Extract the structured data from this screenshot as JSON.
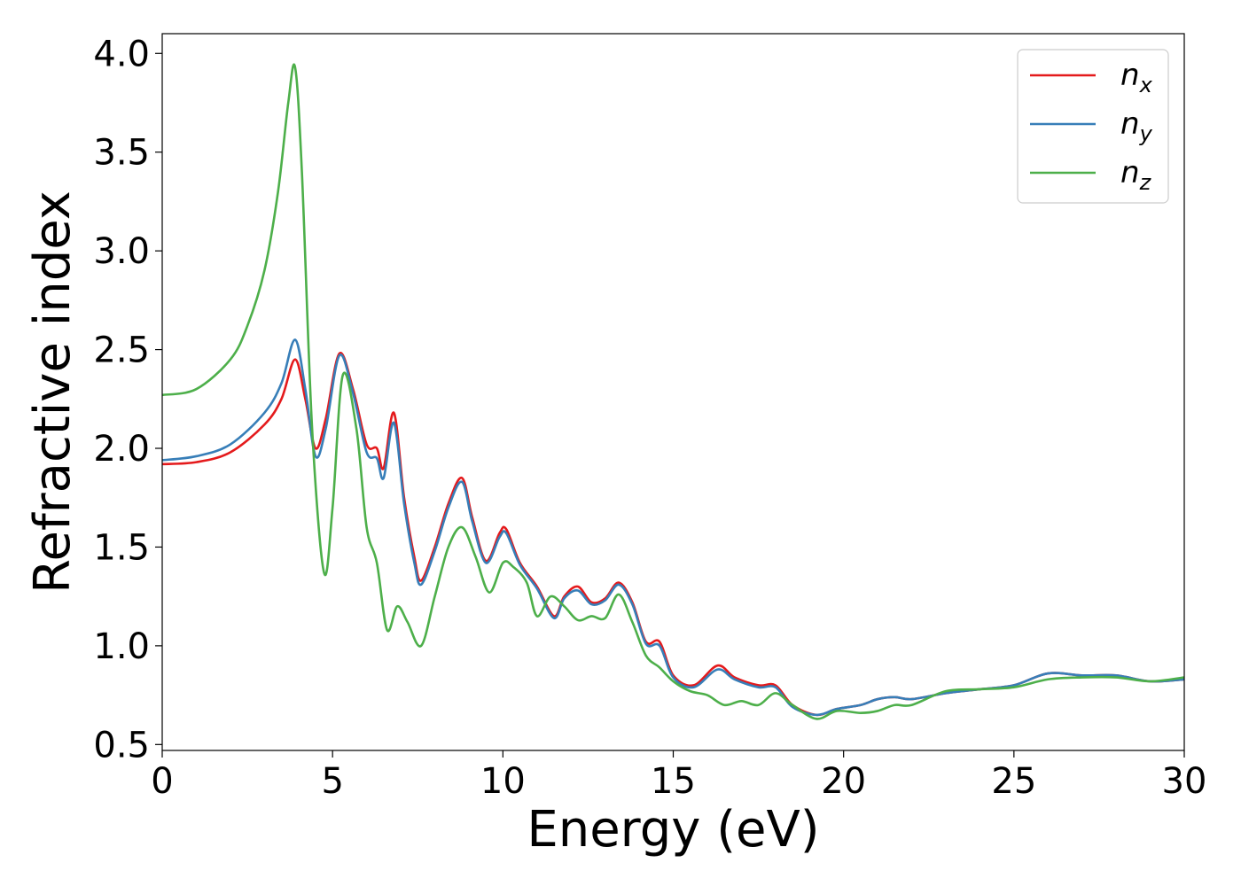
{
  "chart_data": {
    "type": "line",
    "xlabel": "Energy (eV)",
    "ylabel": "Refractive index",
    "xlim": [
      0,
      30
    ],
    "ylim": [
      0.47,
      4.1
    ],
    "xticks": [
      "0",
      "5",
      "10",
      "15",
      "20",
      "25",
      "30"
    ],
    "yticks": [
      "0.5",
      "1.0",
      "1.5",
      "2.0",
      "2.5",
      "3.0",
      "3.5",
      "4.0"
    ],
    "grid": false,
    "legend_position": "top-right",
    "series": [
      {
        "name": "n_x",
        "label_base": "n",
        "label_sub": "x",
        "color": "#e41a1c",
        "x": [
          0,
          1,
          2,
          3,
          3.5,
          3.9,
          4.2,
          4.5,
          4.8,
          5.2,
          5.6,
          6.0,
          6.3,
          6.5,
          6.8,
          7.1,
          7.4,
          7.6,
          8.0,
          8.4,
          8.8,
          9.1,
          9.5,
          9.9,
          10.1,
          10.5,
          11.0,
          11.5,
          11.8,
          12.2,
          12.6,
          13.0,
          13.4,
          13.8,
          14.2,
          14.6,
          15.0,
          15.6,
          16.3,
          16.8,
          17.5,
          18.0,
          18.5,
          19.2,
          19.8,
          20.5,
          21.0,
          21.5,
          22.0,
          23.0,
          24.0,
          25.0,
          26.0,
          27.0,
          28.0,
          29.0,
          30.0
        ],
        "values": [
          1.92,
          1.93,
          1.98,
          2.12,
          2.25,
          2.45,
          2.25,
          2.0,
          2.15,
          2.48,
          2.3,
          2.02,
          2.0,
          1.9,
          2.18,
          1.75,
          1.45,
          1.33,
          1.5,
          1.72,
          1.85,
          1.65,
          1.43,
          1.57,
          1.59,
          1.42,
          1.3,
          1.15,
          1.25,
          1.3,
          1.22,
          1.24,
          1.32,
          1.22,
          1.02,
          1.02,
          0.85,
          0.8,
          0.9,
          0.84,
          0.8,
          0.8,
          0.7,
          0.65,
          0.68,
          0.7,
          0.73,
          0.74,
          0.73,
          0.76,
          0.78,
          0.8,
          0.86,
          0.85,
          0.85,
          0.82,
          0.83
        ]
      },
      {
        "name": "n_y",
        "label_base": "n",
        "label_sub": "y",
        "color": "#377eb8",
        "x": [
          0,
          1,
          2,
          3,
          3.5,
          3.9,
          4.2,
          4.5,
          4.8,
          5.2,
          5.6,
          6.0,
          6.3,
          6.5,
          6.8,
          7.1,
          7.4,
          7.6,
          8.0,
          8.4,
          8.8,
          9.1,
          9.5,
          9.9,
          10.1,
          10.5,
          11.0,
          11.5,
          11.8,
          12.2,
          12.6,
          13.0,
          13.4,
          13.8,
          14.2,
          14.6,
          15.0,
          15.6,
          16.3,
          16.8,
          17.5,
          18.0,
          18.5,
          19.2,
          19.8,
          20.5,
          21.0,
          21.5,
          22.0,
          23.0,
          24.0,
          25.0,
          26.0,
          27.0,
          28.0,
          29.0,
          30.0
        ],
        "values": [
          1.94,
          1.96,
          2.02,
          2.18,
          2.33,
          2.55,
          2.3,
          1.96,
          2.1,
          2.47,
          2.28,
          1.98,
          1.95,
          1.85,
          2.13,
          1.72,
          1.42,
          1.31,
          1.48,
          1.7,
          1.83,
          1.63,
          1.42,
          1.55,
          1.57,
          1.41,
          1.29,
          1.14,
          1.24,
          1.28,
          1.21,
          1.23,
          1.31,
          1.21,
          1.01,
          1.0,
          0.84,
          0.79,
          0.88,
          0.83,
          0.79,
          0.79,
          0.69,
          0.65,
          0.68,
          0.7,
          0.73,
          0.74,
          0.73,
          0.76,
          0.78,
          0.8,
          0.86,
          0.85,
          0.85,
          0.82,
          0.83
        ]
      },
      {
        "name": "n_z",
        "label_base": "n",
        "label_sub": "z",
        "color": "#4daf4a",
        "x": [
          0,
          1,
          2,
          2.5,
          3.0,
          3.4,
          3.7,
          3.9,
          4.1,
          4.4,
          4.75,
          5.0,
          5.3,
          5.7,
          6.0,
          6.3,
          6.6,
          6.9,
          7.2,
          7.6,
          8.0,
          8.4,
          8.8,
          9.2,
          9.6,
          10.0,
          10.3,
          10.7,
          11.0,
          11.4,
          11.8,
          12.2,
          12.6,
          13.0,
          13.4,
          13.8,
          14.2,
          14.6,
          15.0,
          15.5,
          16.0,
          16.5,
          17.0,
          17.5,
          18.0,
          18.5,
          19.2,
          19.8,
          20.5,
          21.0,
          21.5,
          22.0,
          23.0,
          24.0,
          25.0,
          26.0,
          27.0,
          28.0,
          29.0,
          30.0
        ],
        "values": [
          2.27,
          2.3,
          2.45,
          2.62,
          2.9,
          3.3,
          3.75,
          3.93,
          3.4,
          2.1,
          1.37,
          1.7,
          2.37,
          2.1,
          1.6,
          1.42,
          1.08,
          1.2,
          1.12,
          1.0,
          1.25,
          1.5,
          1.6,
          1.45,
          1.27,
          1.42,
          1.4,
          1.32,
          1.15,
          1.25,
          1.2,
          1.13,
          1.15,
          1.14,
          1.26,
          1.12,
          0.95,
          0.89,
          0.82,
          0.77,
          0.75,
          0.7,
          0.72,
          0.7,
          0.76,
          0.7,
          0.63,
          0.67,
          0.66,
          0.67,
          0.7,
          0.7,
          0.77,
          0.78,
          0.79,
          0.83,
          0.84,
          0.84,
          0.82,
          0.84
        ]
      }
    ]
  }
}
